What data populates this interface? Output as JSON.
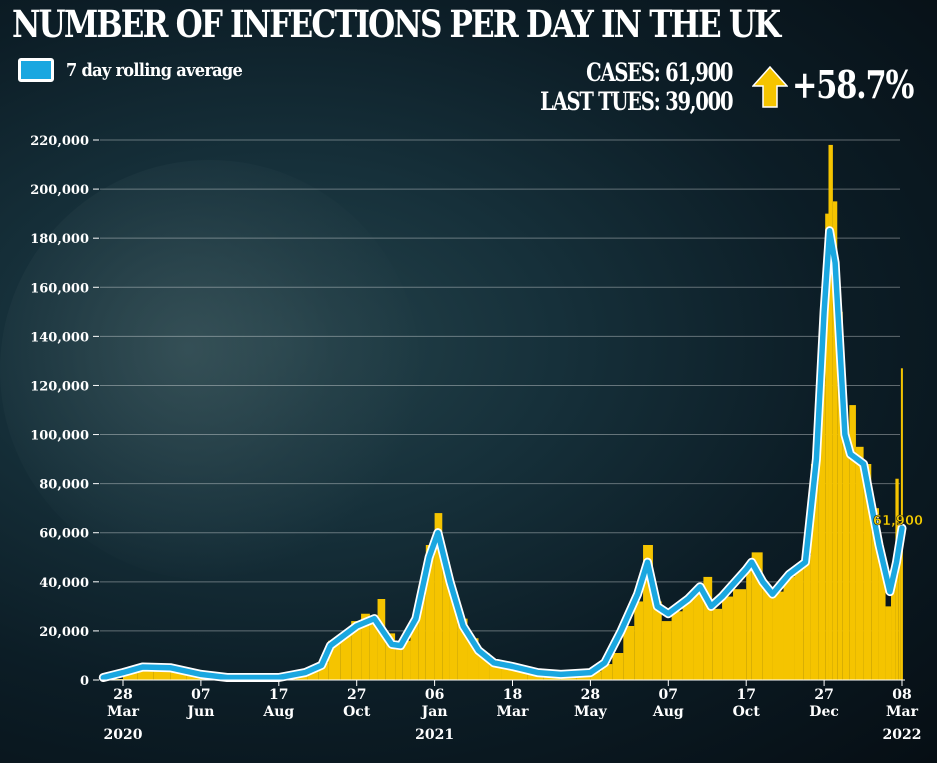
{
  "title": "NUMBER OF INFECTIONS PER DAY IN THE UK",
  "legend": {
    "label": "7 day rolling average",
    "color": "#1aa7e0"
  },
  "summary": {
    "cases_label": "CASES: 61,900",
    "last_tues_label": "LAST TUES: 39,000",
    "change": "+58.7%",
    "arrow_icon": "up-arrow-icon",
    "arrow_color": "#f5c400"
  },
  "chart_data": {
    "type": "bar",
    "title": "NUMBER OF INFECTIONS PER DAY IN THE UK",
    "xlabel": "",
    "ylabel": "",
    "ylim": [
      0,
      220000
    ],
    "yticks": [
      0,
      20000,
      40000,
      60000,
      80000,
      100000,
      120000,
      140000,
      160000,
      180000,
      200000,
      220000
    ],
    "ytick_labels": [
      "0",
      "20,000",
      "40,000",
      "60,000",
      "80,000",
      "100,000",
      "120,000",
      "140,000",
      "160,000",
      "180,000",
      "200,000",
      "220,000"
    ],
    "grid": true,
    "xticks": [
      {
        "date": "2020-03-28",
        "day": "28",
        "month": "Mar",
        "year": "2020"
      },
      {
        "date": "2020-06-07",
        "day": "07",
        "month": "Jun",
        "year": ""
      },
      {
        "date": "2020-08-17",
        "day": "17",
        "month": "Aug",
        "year": ""
      },
      {
        "date": "2020-10-27",
        "day": "27",
        "month": "Oct",
        "year": ""
      },
      {
        "date": "2021-01-06",
        "day": "06",
        "month": "Jan",
        "year": "2021"
      },
      {
        "date": "2021-03-18",
        "day": "18",
        "month": "Mar",
        "year": ""
      },
      {
        "date": "2021-05-28",
        "day": "28",
        "month": "May",
        "year": ""
      },
      {
        "date": "2021-08-07",
        "day": "07",
        "month": "Aug",
        "year": ""
      },
      {
        "date": "2021-10-17",
        "day": "17",
        "month": "Oct",
        "year": ""
      },
      {
        "date": "2021-12-27",
        "day": "27",
        "month": "Dec",
        "year": ""
      },
      {
        "date": "2022-03-08",
        "day": "08",
        "month": "Mar",
        "year": "2022"
      }
    ],
    "end_label": "61,900",
    "bar_color": "#f5c400",
    "line_color": "#1aa7e0",
    "daily_cases": [
      [
        "2020-03-10",
        400
      ],
      [
        "2020-03-28",
        3500
      ],
      [
        "2020-04-10",
        5500
      ],
      [
        "2020-04-25",
        5000
      ],
      [
        "2020-05-10",
        4500
      ],
      [
        "2020-05-25",
        2500
      ],
      [
        "2020-06-07",
        1500
      ],
      [
        "2020-06-25",
        1000
      ],
      [
        "2020-07-15",
        700
      ],
      [
        "2020-08-01",
        800
      ],
      [
        "2020-08-17",
        1100
      ],
      [
        "2020-09-01",
        1800
      ],
      [
        "2020-09-12",
        4000
      ],
      [
        "2020-09-22",
        7000
      ],
      [
        "2020-10-01",
        16000
      ],
      [
        "2020-10-12",
        19000
      ],
      [
        "2020-10-22",
        24000
      ],
      [
        "2020-10-31",
        27000
      ],
      [
        "2020-11-08",
        25000
      ],
      [
        "2020-11-15",
        33000
      ],
      [
        "2020-11-22",
        19000
      ],
      [
        "2020-12-01",
        13000
      ],
      [
        "2020-12-08",
        16000
      ],
      [
        "2020-12-15",
        23000
      ],
      [
        "2020-12-22",
        38000
      ],
      [
        "2020-12-29",
        55000
      ],
      [
        "2021-01-06",
        68000
      ],
      [
        "2021-01-13",
        48000
      ],
      [
        "2021-01-20",
        36000
      ],
      [
        "2021-01-27",
        25000
      ],
      [
        "2021-02-05",
        17000
      ],
      [
        "2021-02-15",
        11000
      ],
      [
        "2021-02-25",
        8000
      ],
      [
        "2021-03-08",
        6000
      ],
      [
        "2021-03-18",
        5500
      ],
      [
        "2021-04-01",
        4000
      ],
      [
        "2021-04-15",
        2700
      ],
      [
        "2021-05-01",
        2300
      ],
      [
        "2021-05-15",
        2400
      ],
      [
        "2021-05-28",
        3500
      ],
      [
        "2021-06-07",
        6500
      ],
      [
        "2021-06-17",
        11000
      ],
      [
        "2021-06-27",
        22000
      ],
      [
        "2021-07-07",
        32000
      ],
      [
        "2021-07-15",
        55000
      ],
      [
        "2021-07-24",
        32000
      ],
      [
        "2021-08-01",
        24000
      ],
      [
        "2021-08-10",
        28000
      ],
      [
        "2021-08-20",
        33000
      ],
      [
        "2021-08-30",
        35000
      ],
      [
        "2021-09-08",
        42000
      ],
      [
        "2021-09-16",
        29000
      ],
      [
        "2021-09-25",
        34000
      ],
      [
        "2021-10-05",
        37000
      ],
      [
        "2021-10-17",
        45000
      ],
      [
        "2021-10-22",
        52000
      ],
      [
        "2021-11-01",
        38000
      ],
      [
        "2021-11-10",
        36000
      ],
      [
        "2021-11-20",
        42000
      ],
      [
        "2021-11-30",
        45000
      ],
      [
        "2021-12-08",
        51000
      ],
      [
        "2021-12-15",
        88000
      ],
      [
        "2021-12-22",
        122000
      ],
      [
        "2021-12-28",
        190000
      ],
      [
        "2021-12-31",
        218000
      ],
      [
        "2022-01-04",
        195000
      ],
      [
        "2022-01-08",
        150000
      ],
      [
        "2022-01-13",
        100000
      ],
      [
        "2022-01-19",
        112000
      ],
      [
        "2022-01-25",
        95000
      ],
      [
        "2022-02-01",
        88000
      ],
      [
        "2022-02-08",
        70000
      ],
      [
        "2022-02-15",
        50000
      ],
      [
        "2022-02-21",
        30000
      ],
      [
        "2022-02-26",
        42000
      ],
      [
        "2022-03-02",
        82000
      ],
      [
        "2022-03-05",
        52000
      ],
      [
        "2022-03-07",
        127000
      ]
    ],
    "series": [
      {
        "name": "7 day rolling average",
        "type": "line",
        "points": [
          [
            "2020-03-10",
            1000
          ],
          [
            "2020-03-28",
            3000
          ],
          [
            "2020-04-15",
            5300
          ],
          [
            "2020-05-10",
            5000
          ],
          [
            "2020-06-07",
            2300
          ],
          [
            "2020-07-01",
            1000
          ],
          [
            "2020-08-17",
            1000
          ],
          [
            "2020-09-10",
            3000
          ],
          [
            "2020-09-25",
            6000
          ],
          [
            "2020-10-03",
            14000
          ],
          [
            "2020-10-15",
            18000
          ],
          [
            "2020-10-27",
            22000
          ],
          [
            "2020-11-12",
            25000
          ],
          [
            "2020-11-28",
            14500
          ],
          [
            "2020-12-06",
            14000
          ],
          [
            "2020-12-20",
            25000
          ],
          [
            "2021-01-01",
            50000
          ],
          [
            "2021-01-09",
            60000
          ],
          [
            "2021-01-20",
            40000
          ],
          [
            "2021-02-01",
            22000
          ],
          [
            "2021-02-15",
            12000
          ],
          [
            "2021-03-01",
            7000
          ],
          [
            "2021-03-18",
            5500
          ],
          [
            "2021-04-10",
            3000
          ],
          [
            "2021-05-01",
            2300
          ],
          [
            "2021-05-28",
            3000
          ],
          [
            "2021-06-10",
            7000
          ],
          [
            "2021-06-25",
            20000
          ],
          [
            "2021-07-10",
            35000
          ],
          [
            "2021-07-19",
            48000
          ],
          [
            "2021-07-28",
            30000
          ],
          [
            "2021-08-07",
            27000
          ],
          [
            "2021-08-25",
            33000
          ],
          [
            "2021-09-05",
            38000
          ],
          [
            "2021-09-15",
            30000
          ],
          [
            "2021-09-25",
            34000
          ],
          [
            "2021-10-17",
            45000
          ],
          [
            "2021-10-22",
            48000
          ],
          [
            "2021-11-01",
            40000
          ],
          [
            "2021-11-10",
            35000
          ],
          [
            "2021-11-25",
            43000
          ],
          [
            "2021-12-10",
            48000
          ],
          [
            "2021-12-20",
            90000
          ],
          [
            "2021-12-27",
            150000
          ],
          [
            "2022-01-01",
            183000
          ],
          [
            "2022-01-06",
            170000
          ],
          [
            "2022-01-15",
            100000
          ],
          [
            "2022-01-20",
            92000
          ],
          [
            "2022-02-01",
            88000
          ],
          [
            "2022-02-15",
            55000
          ],
          [
            "2022-02-25",
            36000
          ],
          [
            "2022-03-03",
            48000
          ],
          [
            "2022-03-08",
            61900
          ]
        ]
      }
    ]
  }
}
